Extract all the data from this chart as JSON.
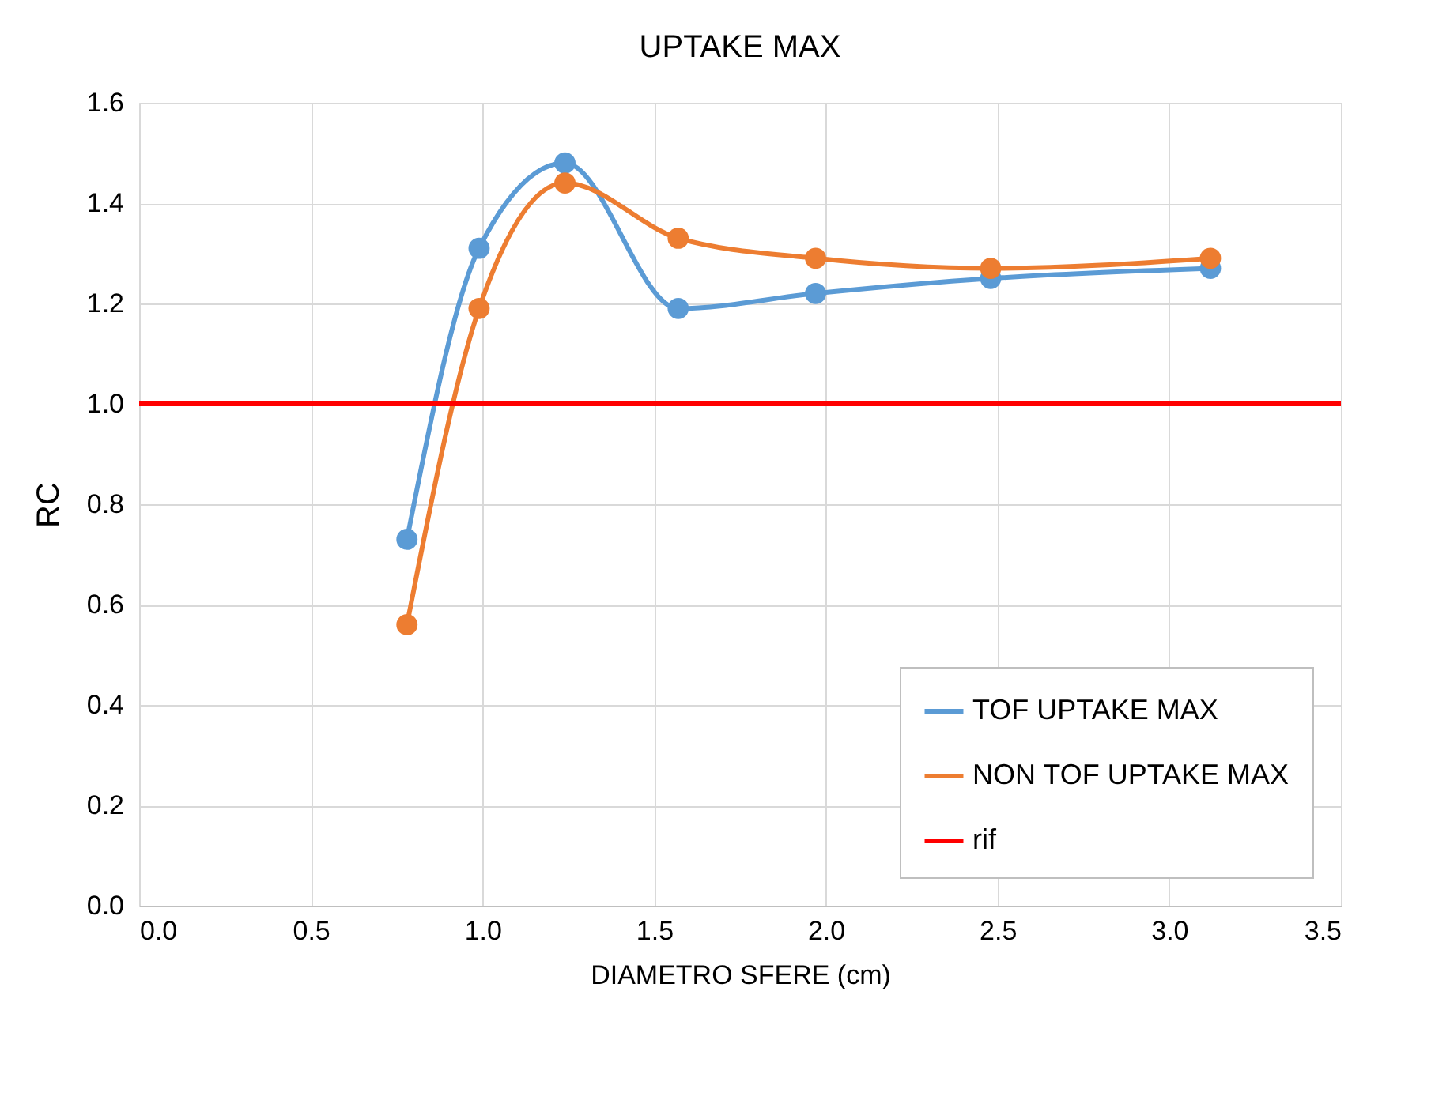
{
  "chart_data": {
    "type": "line",
    "title": "UPTAKE MAX",
    "xlabel": "DIAMETRO SFERE (cm)",
    "ylabel": "RC",
    "x": [
      0.78,
      0.99,
      1.24,
      1.57,
      1.97,
      2.48,
      3.12
    ],
    "series": [
      {
        "name": "TOF UPTAKE MAX",
        "color": "#5b9bd5",
        "values": [
          0.73,
          1.31,
          1.48,
          1.19,
          1.22,
          1.25,
          1.27
        ]
      },
      {
        "name": "NON TOF UPTAKE MAX",
        "color": "#ed7d31",
        "values": [
          0.56,
          1.19,
          1.44,
          1.33,
          1.29,
          1.27,
          1.29
        ]
      }
    ],
    "ref_lines": [
      {
        "axis": "y",
        "value": 1.0,
        "label": "rif",
        "color": "#ff0000"
      }
    ],
    "xlim": [
      0,
      3.5
    ],
    "xticks": [
      {
        "value": 0,
        "label": "0.0"
      },
      0.5,
      {
        "value": 1,
        "label": "1.0"
      },
      1.5,
      {
        "value": 2,
        "label": "2.0"
      },
      2.5,
      {
        "value": 3,
        "label": "3.0"
      },
      3.5
    ],
    "ylim": [
      0,
      1.6
    ],
    "yticks": [
      {
        "value": 0,
        "label": "0.0"
      },
      0.2,
      0.4,
      0.6,
      0.8,
      {
        "value": 1,
        "label": "1.0"
      },
      1.2,
      1.4,
      1.6
    ],
    "grid": true,
    "legend": "bottom right",
    "marker": "circle",
    "line_style": "solid"
  }
}
